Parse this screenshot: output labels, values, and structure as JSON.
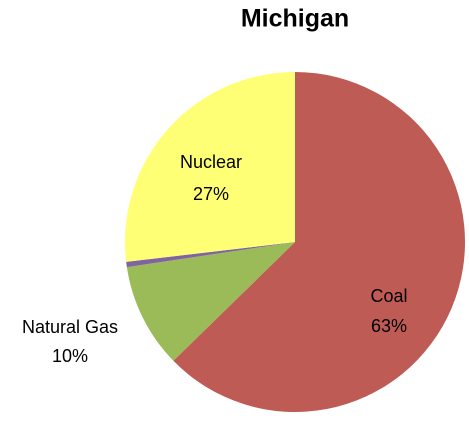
{
  "chart_data": {
    "type": "pie",
    "title": "Michigan",
    "categories": [
      "Coal",
      "Natural Gas",
      null,
      "Nuclear"
    ],
    "values": [
      63,
      10,
      0.5,
      27
    ],
    "value_labels": [
      "63%",
      "10%",
      null,
      "27%"
    ],
    "colors": [
      "#be5b55",
      "#9bbb59",
      "#8064a2",
      "#ffff75"
    ]
  }
}
